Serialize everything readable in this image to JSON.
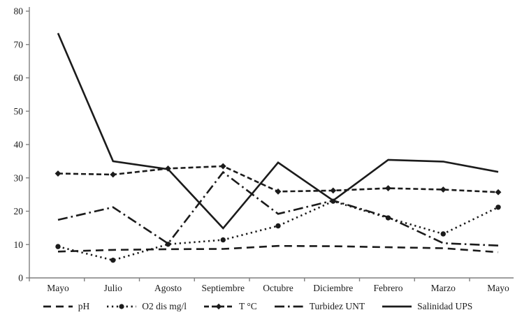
{
  "chart_data": {
    "type": "line",
    "title": "",
    "xlabel": "",
    "ylabel": "",
    "categories": [
      "Mayo",
      "Julio",
      "Agosto",
      "Septiembre",
      "Octubre",
      "Diciembre",
      "Febrero",
      "Marzo",
      "Mayo"
    ],
    "series": [
      {
        "name": "pH",
        "values": [
          7.9,
          8.4,
          8.6,
          8.7,
          9.6,
          9.5,
          9.2,
          8.9,
          7.7
        ],
        "line_style": "dashed",
        "marker": "none"
      },
      {
        "name": "O2 dis mg/l",
        "values": [
          9.4,
          5.3,
          10.1,
          11.4,
          15.6,
          23.0,
          18.0,
          13.2,
          21.2
        ],
        "line_style": "dotted",
        "marker": "circle"
      },
      {
        "name": "T °C",
        "values": [
          31.3,
          31.0,
          32.8,
          33.5,
          25.9,
          26.2,
          26.9,
          26.5,
          25.7
        ],
        "line_style": "dash",
        "marker": "diamond"
      },
      {
        "name": "Turbidez UNT",
        "values": [
          17.4,
          21.2,
          10.3,
          31.7,
          19.2,
          23.2,
          18.2,
          10.4,
          9.7
        ],
        "line_style": "dashdot",
        "marker": "none"
      },
      {
        "name": "Salinidad UPS",
        "values": [
          73.4,
          35.0,
          32.6,
          14.9,
          34.6,
          23.2,
          35.4,
          34.9,
          31.8
        ],
        "line_style": "solid",
        "marker": "none"
      }
    ],
    "ylim": [
      0,
      80
    ],
    "yticks": [
      0,
      10,
      20,
      30,
      40,
      50,
      60,
      70,
      80
    ],
    "grid": false,
    "legend_position": "bottom",
    "line_color": "#1b1b1b",
    "background_color": "#ffffff"
  }
}
